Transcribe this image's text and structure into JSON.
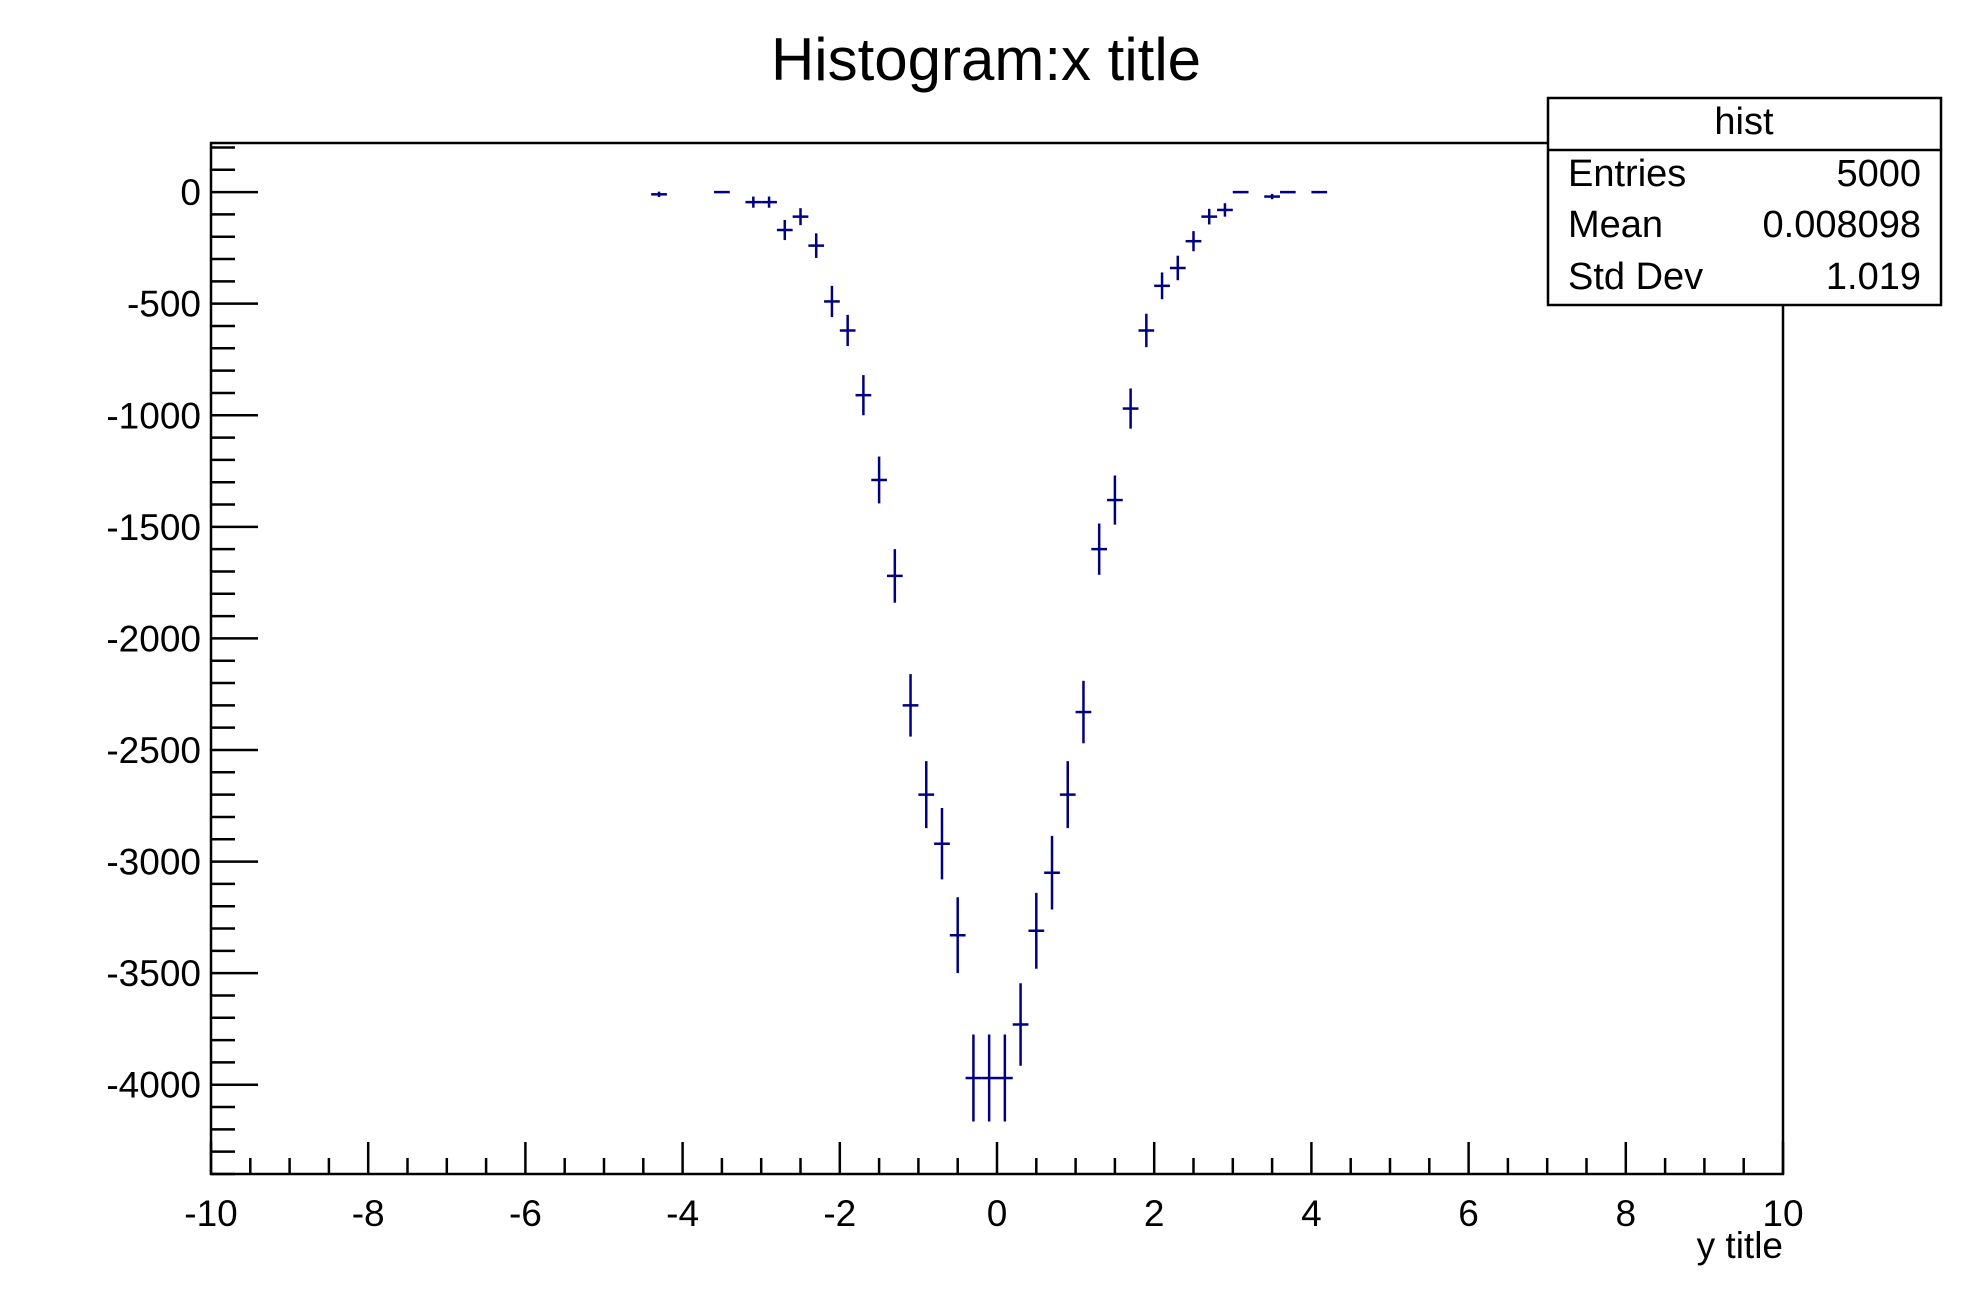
{
  "chart_data": {
    "type": "scatter",
    "title": "Histogram:x title",
    "xlabel": "y title",
    "ylabel": "",
    "xlim": [
      -10,
      10
    ],
    "ylim": [
      -4400,
      220
    ],
    "x_ticks": [
      -10,
      -8,
      -6,
      -4,
      -2,
      0,
      2,
      4,
      6,
      8,
      10
    ],
    "x_tick_labels": [
      "-10",
      "-8",
      "-6",
      "-4",
      "-2",
      "0",
      "2",
      "4",
      "6",
      "8",
      "10"
    ],
    "y_ticks": [
      0,
      -500,
      -1000,
      -1500,
      -2000,
      -2500,
      -3000,
      -3500,
      -4000
    ],
    "y_tick_labels": [
      "0",
      "-500",
      "-1000",
      "-1500",
      "-2000",
      "-2500",
      "-3000",
      "-3500",
      "-4000"
    ],
    "grid": false,
    "color": "#000080",
    "bin_width": 0.2,
    "series": [
      {
        "points": [
          {
            "x": -4.3,
            "y": -10,
            "err": 12
          },
          {
            "x": -3.5,
            "y": 0,
            "err": 5
          },
          {
            "x": -3.1,
            "y": -45,
            "err": 25
          },
          {
            "x": -2.9,
            "y": -45,
            "err": 25
          },
          {
            "x": -2.7,
            "y": -170,
            "err": 45
          },
          {
            "x": -2.5,
            "y": -110,
            "err": 38
          },
          {
            "x": -2.3,
            "y": -240,
            "err": 55
          },
          {
            "x": -2.1,
            "y": -490,
            "err": 70
          },
          {
            "x": -1.9,
            "y": -620,
            "err": 70
          },
          {
            "x": -1.7,
            "y": -910,
            "err": 90
          },
          {
            "x": -1.5,
            "y": -1290,
            "err": 105
          },
          {
            "x": -1.3,
            "y": -1720,
            "err": 120
          },
          {
            "x": -1.1,
            "y": -2300,
            "err": 140
          },
          {
            "x": -0.9,
            "y": -2700,
            "err": 150
          },
          {
            "x": -0.7,
            "y": -2920,
            "err": 160
          },
          {
            "x": -0.5,
            "y": -3330,
            "err": 170
          },
          {
            "x": -0.3,
            "y": -3970,
            "err": 195
          },
          {
            "x": -0.1,
            "y": -3970,
            "err": 195
          },
          {
            "x": 0.1,
            "y": -3970,
            "err": 195
          },
          {
            "x": 0.3,
            "y": -3730,
            "err": 185
          },
          {
            "x": 0.5,
            "y": -3310,
            "err": 170
          },
          {
            "x": 0.7,
            "y": -3050,
            "err": 165
          },
          {
            "x": 0.9,
            "y": -2700,
            "err": 150
          },
          {
            "x": 1.1,
            "y": -2330,
            "err": 140
          },
          {
            "x": 1.3,
            "y": -1600,
            "err": 115
          },
          {
            "x": 1.5,
            "y": -1380,
            "err": 110
          },
          {
            "x": 1.7,
            "y": -970,
            "err": 90
          },
          {
            "x": 1.9,
            "y": -620,
            "err": 75
          },
          {
            "x": 2.1,
            "y": -420,
            "err": 60
          },
          {
            "x": 2.3,
            "y": -340,
            "err": 55
          },
          {
            "x": 2.5,
            "y": -220,
            "err": 45
          },
          {
            "x": 2.7,
            "y": -110,
            "err": 35
          },
          {
            "x": 2.9,
            "y": -80,
            "err": 30
          },
          {
            "x": 3.1,
            "y": 0,
            "err": 5
          },
          {
            "x": 3.5,
            "y": -20,
            "err": 12
          },
          {
            "x": 3.7,
            "y": 0,
            "err": 5
          },
          {
            "x": 4.1,
            "y": 0,
            "err": 5
          }
        ]
      }
    ],
    "stats_box": {
      "name": "hist",
      "rows": [
        {
          "label": "Entries",
          "value": "5000"
        },
        {
          "label": "Mean",
          "value": "0.008098"
        },
        {
          "label": "Std Dev",
          "value": "1.019"
        }
      ]
    }
  }
}
